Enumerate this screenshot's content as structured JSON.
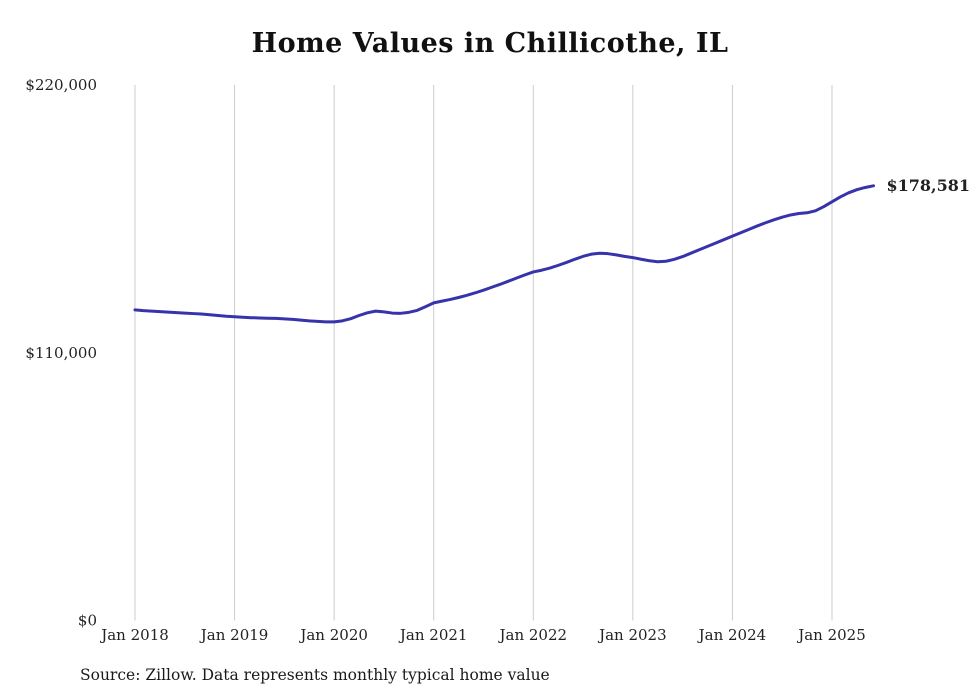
{
  "chart_data": {
    "type": "line",
    "title": "Home Values in Chillicothe, IL",
    "xlabel": "",
    "ylabel": "",
    "x_unit": "month",
    "x_start": "2018-01",
    "x_tick_labels": [
      "Jan 2018",
      "Jan 2019",
      "Jan 2020",
      "Jan 2021",
      "Jan 2022",
      "Jan 2023",
      "Jan 2024",
      "Jan 2025"
    ],
    "y_ticks": [
      0,
      110000,
      220000
    ],
    "y_tick_labels": [
      "$0",
      "$110,000",
      "$220,000"
    ],
    "ylim": [
      0,
      220000
    ],
    "grid": "vertical",
    "legend": "none",
    "series": [
      {
        "name": "Typical home value",
        "values": [
          127600,
          127300,
          127100,
          126900,
          126700,
          126500,
          126300,
          126100,
          125900,
          125600,
          125300,
          125000,
          124800,
          124600,
          124400,
          124300,
          124200,
          124100,
          123900,
          123700,
          123400,
          123100,
          122900,
          122700,
          122700,
          123100,
          124000,
          125300,
          126400,
          127100,
          126800,
          126300,
          126200,
          126600,
          127400,
          128900,
          130500,
          131200,
          131900,
          132700,
          133600,
          134600,
          135700,
          136900,
          138100,
          139400,
          140700,
          142000,
          143200,
          143900,
          144800,
          145900,
          147100,
          148400,
          149600,
          150500,
          150900,
          150700,
          150200,
          149600,
          149100,
          148400,
          147800,
          147400,
          147600,
          148400,
          149500,
          150900,
          152300,
          153700,
          155100,
          156500,
          157900,
          159300,
          160700,
          162100,
          163400,
          164600,
          165700,
          166600,
          167200,
          167500,
          168300,
          170000,
          172000,
          174000,
          175700,
          177000,
          177900,
          178581
        ]
      }
    ],
    "annotation": {
      "text": "$178,581",
      "value": 178581,
      "position": "line-end"
    },
    "source_note": "Source: Zillow. Data represents monthly typical home value"
  },
  "colors": {
    "line": "#3733aa",
    "grid": "#cccccc",
    "tick_text": "#222222",
    "title_text": "#111111"
  }
}
